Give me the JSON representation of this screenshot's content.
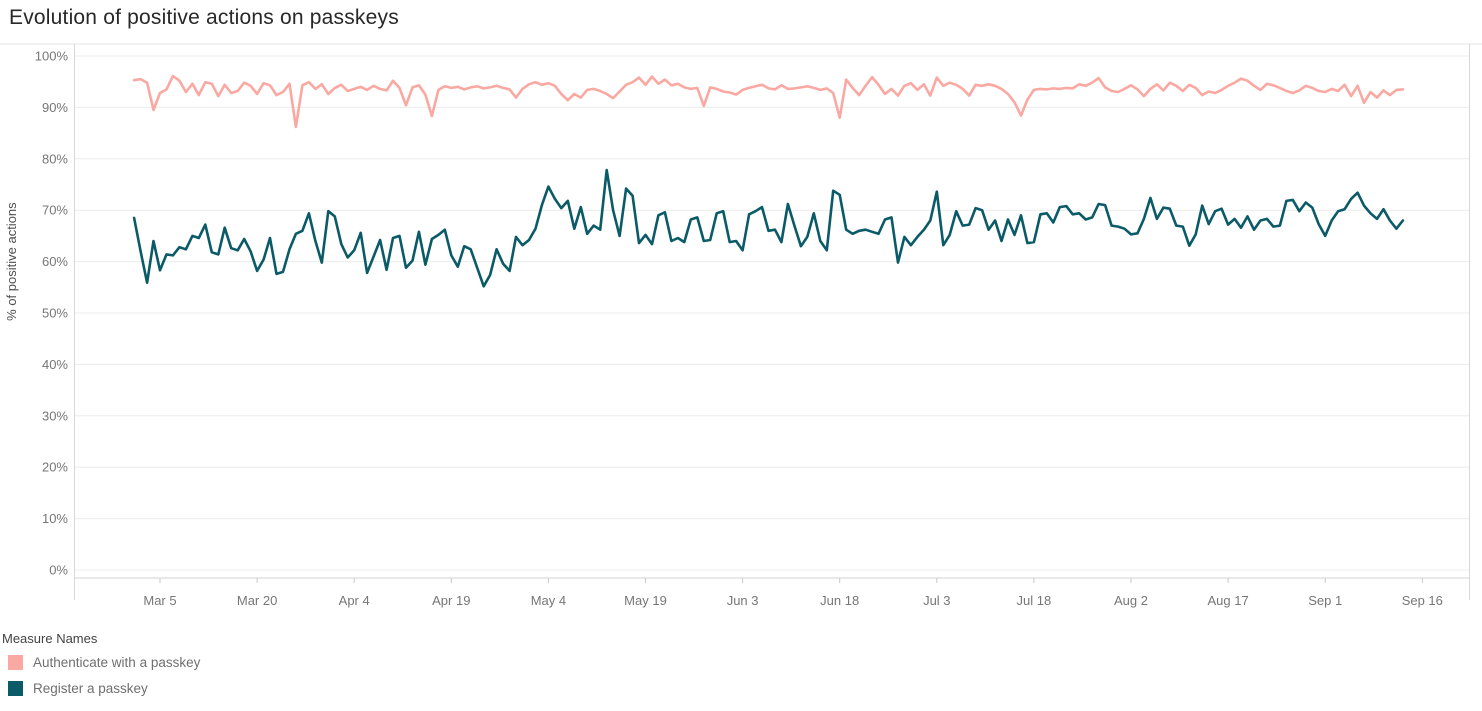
{
  "title": "Evolution of positive actions on passkeys",
  "legend": {
    "title": "Measure Names",
    "items": [
      {
        "label": "Authenticate with a passkey",
        "color": "#faa8a2"
      },
      {
        "label": "Register a passkey",
        "color": "#0a5a68"
      }
    ]
  },
  "chart_data": {
    "type": "line",
    "title": "Evolution of positive actions on passkeys",
    "xlabel": "",
    "ylabel": "% of positive actions",
    "ylim": [
      0,
      100
    ],
    "grid": "horizontal",
    "legend_position": "bottom-left",
    "y_ticks": [
      "0%",
      "10%",
      "20%",
      "30%",
      "40%",
      "50%",
      "60%",
      "70%",
      "80%",
      "90%",
      "100%"
    ],
    "y_tick_values": [
      0,
      10,
      20,
      30,
      40,
      50,
      60,
      70,
      80,
      90,
      100
    ],
    "x_tick_labels": [
      "Mar 5",
      "Mar 20",
      "Apr 4",
      "Apr 19",
      "May 4",
      "May 19",
      "Jun 3",
      "Jun 18",
      "Jul 3",
      "Jul 18",
      "Aug 2",
      "Aug 17",
      "Sep 1",
      "Sep 16"
    ],
    "x_tick_step_days": 15,
    "x_first_tick_day_index": 4,
    "x_unit": "daily values, Mar 1 through Sep 13",
    "series": [
      {
        "name": "Authenticate with a passkey",
        "color": "#faa8a2",
        "values": [
          95.3,
          95.5,
          94.8,
          89.5,
          92.8,
          93.5,
          96.1,
          95.2,
          93.0,
          94.6,
          92.4,
          94.9,
          94.6,
          92.2,
          94.4,
          92.8,
          93.2,
          94.8,
          94.2,
          92.6,
          94.7,
          94.3,
          92.4,
          93.0,
          94.6,
          86.2,
          94.3,
          94.9,
          93.6,
          94.5,
          92.6,
          93.8,
          94.4,
          93.2,
          93.6,
          94.0,
          93.4,
          94.2,
          93.6,
          93.3,
          95.2,
          93.8,
          90.4,
          93.9,
          94.3,
          92.5,
          88.3,
          93.4,
          94.1,
          93.8,
          94.0,
          93.5,
          93.9,
          94.1,
          93.7,
          93.9,
          94.2,
          93.8,
          93.5,
          91.9,
          93.6,
          94.5,
          94.9,
          94.4,
          94.7,
          94.2,
          92.6,
          91.4,
          92.6,
          91.9,
          93.4,
          93.6,
          93.2,
          92.6,
          91.8,
          93.1,
          94.4,
          94.9,
          95.8,
          94.4,
          96.0,
          94.6,
          95.4,
          94.3,
          94.6,
          93.9,
          93.6,
          93.8,
          90.3,
          93.9,
          93.6,
          93.1,
          92.9,
          92.5,
          93.4,
          93.8,
          94.1,
          94.4,
          93.7,
          93.5,
          94.3,
          93.6,
          93.7,
          93.9,
          94.1,
          93.8,
          93.4,
          93.7,
          92.8,
          88.0,
          95.4,
          93.8,
          92.4,
          94.2,
          95.9,
          94.4,
          92.6,
          93.6,
          92.3,
          94.2,
          94.7,
          93.4,
          94.5,
          92.3,
          95.8,
          94.2,
          94.8,
          94.4,
          93.6,
          92.3,
          94.4,
          94.2,
          94.5,
          94.2,
          93.6,
          92.6,
          91.0,
          88.4,
          91.5,
          93.4,
          93.6,
          93.5,
          93.7,
          93.6,
          93.8,
          93.7,
          94.5,
          94.2,
          94.8,
          95.7,
          93.9,
          93.2,
          93.0,
          93.6,
          94.3,
          93.5,
          92.2,
          93.6,
          94.5,
          93.3,
          94.8,
          94.2,
          93.2,
          94.4,
          93.8,
          92.4,
          93.1,
          92.8,
          93.4,
          94.2,
          94.8,
          95.6,
          95.2,
          94.2,
          93.4,
          94.6,
          94.3,
          93.8,
          93.2,
          92.8,
          93.3,
          94.2,
          93.8,
          93.2,
          93.0,
          93.6,
          93.2,
          94.4,
          92.2,
          94.2,
          90.9,
          93.0,
          91.9,
          93.3,
          92.4,
          93.4,
          93.5
        ]
      },
      {
        "name": "Register a passkey",
        "color": "#0a5a68",
        "values": [
          68.5,
          62.0,
          55.9,
          64.0,
          58.3,
          61.4,
          61.2,
          62.8,
          62.4,
          65.0,
          64.6,
          67.2,
          61.8,
          61.4,
          66.6,
          62.6,
          62.2,
          64.4,
          62.0,
          58.2,
          60.4,
          64.6,
          57.6,
          58.0,
          62.4,
          65.4,
          66.0,
          69.4,
          64.0,
          59.8,
          69.8,
          68.8,
          63.4,
          60.8,
          62.2,
          65.6,
          57.8,
          61.0,
          64.2,
          58.4,
          64.6,
          65.0,
          58.8,
          60.2,
          65.8,
          59.4,
          64.4,
          65.2,
          66.2,
          61.2,
          59.0,
          63.0,
          62.4,
          58.8,
          55.2,
          57.4,
          62.4,
          59.6,
          58.2,
          64.8,
          63.2,
          64.2,
          66.4,
          71.0,
          74.6,
          72.2,
          70.4,
          71.8,
          66.4,
          70.6,
          65.4,
          67.0,
          66.2,
          77.8,
          70.0,
          65.0,
          74.2,
          72.8,
          63.6,
          65.2,
          63.4,
          69.0,
          69.6,
          64.0,
          64.6,
          63.8,
          68.2,
          68.6,
          64.0,
          64.2,
          69.4,
          69.8,
          63.8,
          64.0,
          62.2,
          69.2,
          69.8,
          70.6,
          66.0,
          66.2,
          63.8,
          71.2,
          67.0,
          63.0,
          64.8,
          69.4,
          64.0,
          62.2,
          73.8,
          73.0,
          66.2,
          65.4,
          66.0,
          66.2,
          65.8,
          65.4,
          68.2,
          68.6,
          59.8,
          64.8,
          63.2,
          64.8,
          66.2,
          68.0,
          73.6,
          63.2,
          65.2,
          69.8,
          67.0,
          67.2,
          70.4,
          70.0,
          66.2,
          68.0,
          64.0,
          68.2,
          65.2,
          69.0,
          63.6,
          63.8,
          69.2,
          69.4,
          67.6,
          70.6,
          70.8,
          69.2,
          69.4,
          68.2,
          68.6,
          71.2,
          71.0,
          67.0,
          66.8,
          66.4,
          65.3,
          65.5,
          68.3,
          72.4,
          68.3,
          70.5,
          70.3,
          67.0,
          66.8,
          63.1,
          65.3,
          70.9,
          67.3,
          69.8,
          70.3,
          67.2,
          68.3,
          66.6,
          68.8,
          66.2,
          68.0,
          68.3,
          66.8,
          67.0,
          71.8,
          72.0,
          69.8,
          71.5,
          70.5,
          67.3,
          65.0,
          68.0,
          69.8,
          70.2,
          72.2,
          73.4,
          70.9,
          69.4,
          68.3,
          70.2,
          68.0,
          66.4,
          68.0
        ]
      }
    ]
  }
}
